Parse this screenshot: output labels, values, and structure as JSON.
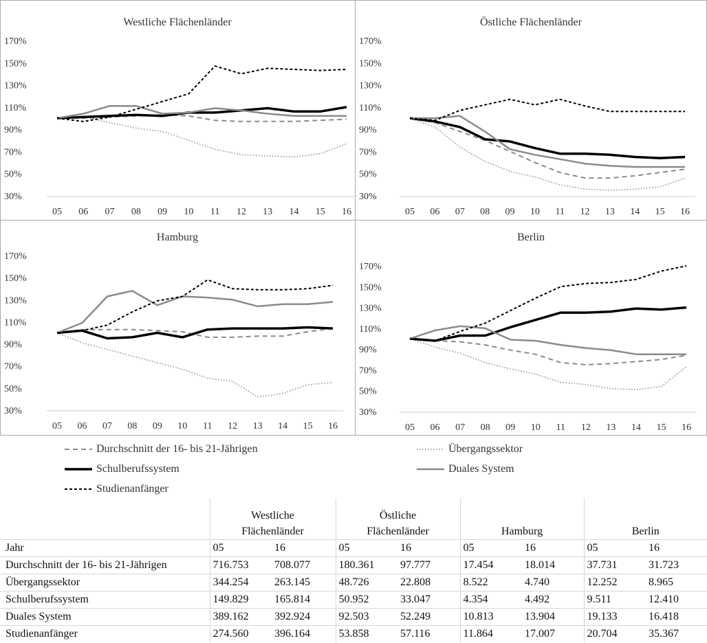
{
  "chart_data": [
    {
      "type": "line",
      "title": "Westliche Flächenländer",
      "categories": [
        "05",
        "06",
        "07",
        "08",
        "09",
        "10",
        "11",
        "12",
        "13",
        "14",
        "15",
        "16"
      ],
      "ylim": [
        30,
        170
      ],
      "yticks": [
        "30%",
        "50%",
        "70%",
        "90%",
        "110%",
        "130%",
        "150%",
        "170%"
      ],
      "series": [
        {
          "key": "durch",
          "values": [
            100,
            100,
            101,
            102,
            103,
            102,
            98,
            97,
            97,
            97,
            98,
            99
          ]
        },
        {
          "key": "ueb",
          "values": [
            100,
            101,
            96,
            91,
            88,
            80,
            72,
            67,
            66,
            65,
            68,
            77
          ]
        },
        {
          "key": "schul",
          "values": [
            100,
            101,
            102,
            103,
            102,
            105,
            105,
            107,
            109,
            106,
            106,
            110
          ]
        },
        {
          "key": "dual",
          "values": [
            100,
            104,
            111,
            111,
            104,
            105,
            109,
            107,
            104,
            102,
            102,
            102
          ]
        },
        {
          "key": "stud",
          "values": [
            100,
            97,
            101,
            108,
            115,
            122,
            147,
            140,
            145,
            144,
            143,
            144
          ]
        }
      ]
    },
    {
      "type": "line",
      "title": "Östliche Flächenländer",
      "categories": [
        "05",
        "06",
        "07",
        "08",
        "09",
        "10",
        "11",
        "12",
        "13",
        "14",
        "15",
        "16"
      ],
      "ylim": [
        30,
        170
      ],
      "yticks": [
        "30%",
        "50%",
        "70%",
        "90%",
        "110%",
        "130%",
        "150%",
        "170%"
      ],
      "series": [
        {
          "key": "durch",
          "values": [
            100,
            96,
            88,
            80,
            70,
            60,
            51,
            46,
            46,
            48,
            51,
            54
          ]
        },
        {
          "key": "ueb",
          "values": [
            100,
            92,
            74,
            61,
            52,
            47,
            40,
            36,
            35,
            36,
            38,
            46
          ]
        },
        {
          "key": "schul",
          "values": [
            100,
            97,
            92,
            81,
            79,
            73,
            68,
            68,
            67,
            65,
            64,
            65
          ]
        },
        {
          "key": "dual",
          "values": [
            100,
            100,
            102,
            88,
            72,
            67,
            63,
            59,
            57,
            56,
            56,
            56
          ]
        },
        {
          "key": "stud",
          "values": [
            100,
            98,
            107,
            112,
            117,
            112,
            117,
            111,
            106,
            106,
            106,
            106
          ]
        }
      ]
    },
    {
      "type": "line",
      "title": "Hamburg",
      "categories": [
        "05",
        "06",
        "07",
        "08",
        "09",
        "10",
        "11",
        "12",
        "13",
        "14",
        "15",
        "16"
      ],
      "ylim": [
        30,
        170
      ],
      "yticks": [
        "30%",
        "50%",
        "70%",
        "90%",
        "110%",
        "130%",
        "150%",
        "170%"
      ],
      "series": [
        {
          "key": "durch",
          "values": [
            100,
            103,
            103,
            103,
            102,
            101,
            96,
            96,
            97,
            97,
            101,
            104
          ]
        },
        {
          "key": "ueb",
          "values": [
            100,
            91,
            85,
            79,
            73,
            67,
            59,
            56,
            42,
            45,
            53,
            55
          ]
        },
        {
          "key": "schul",
          "values": [
            100,
            102,
            95,
            96,
            100,
            96,
            103,
            104,
            104,
            104,
            105,
            104
          ]
        },
        {
          "key": "dual",
          "values": [
            100,
            109,
            133,
            138,
            125,
            133,
            132,
            130,
            124,
            126,
            126,
            128
          ]
        },
        {
          "key": "stud",
          "values": [
            100,
            102,
            107,
            119,
            129,
            133,
            148,
            140,
            139,
            139,
            140,
            143
          ]
        }
      ]
    },
    {
      "type": "line",
      "title": "Berlin",
      "categories": [
        "05",
        "06",
        "07",
        "08",
        "09",
        "10",
        "11",
        "12",
        "13",
        "14",
        "15",
        "16"
      ],
      "ylim": [
        30,
        170
      ],
      "yticks": [
        "30%",
        "50%",
        "70%",
        "90%",
        "110%",
        "130%",
        "150%",
        "170%"
      ],
      "series": [
        {
          "key": "durch",
          "values": [
            100,
            98,
            97,
            94,
            89,
            85,
            77,
            75,
            76,
            78,
            80,
            84
          ]
        },
        {
          "key": "ueb",
          "values": [
            100,
            92,
            86,
            77,
            71,
            66,
            58,
            56,
            52,
            51,
            54,
            73
          ]
        },
        {
          "key": "schul",
          "values": [
            100,
            98,
            103,
            103,
            111,
            118,
            125,
            125,
            126,
            129,
            128,
            130
          ]
        },
        {
          "key": "dual",
          "values": [
            100,
            108,
            112,
            110,
            99,
            98,
            94,
            91,
            89,
            85,
            85,
            85
          ]
        },
        {
          "key": "stud",
          "values": [
            100,
            98,
            107,
            115,
            127,
            139,
            150,
            153,
            154,
            157,
            165,
            170
          ]
        }
      ]
    }
  ],
  "legend": {
    "durch": "Durchschnitt der 16- bis 21-Jährigen",
    "ueb": "Übergangssektor",
    "schul": "Schulberufssystem",
    "dual": "Duales System",
    "stud": "Studienanfänger"
  },
  "table": {
    "header_regions": [
      {
        "line1": "Westliche",
        "line2": "Flächenländer"
      },
      {
        "line1": "Östliche",
        "line2": "Flächenländer"
      },
      {
        "line1": "",
        "line2": "Hamburg"
      },
      {
        "line1": "",
        "line2": "Berlin"
      }
    ],
    "year_row": [
      "Jahr",
      "05",
      "16",
      "05",
      "16",
      "05",
      "16",
      "05",
      "16"
    ],
    "rows": [
      [
        "Durchschnitt der 16- bis 21-Jährigen",
        "716.753",
        "708.077",
        "180.361",
        "97.777",
        "17.454",
        "18.014",
        "37.731",
        "31.723"
      ],
      [
        "Übergangssektor",
        "344.254",
        "263.145",
        "48.726",
        "22.808",
        "8.522",
        "4.740",
        "12.252",
        "8.965"
      ],
      [
        "Schulberufssystem",
        "149.829",
        "165.814",
        "50.952",
        "33.047",
        "4.354",
        "4.492",
        "9.511",
        "12.410"
      ],
      [
        "Duales System",
        "389.162",
        "392.924",
        "92.503",
        "52.249",
        "10.813",
        "13.904",
        "19.133",
        "16.418"
      ],
      [
        "Studienanfänger",
        "274.560",
        "396.164",
        "53.858",
        "57.116",
        "11.864",
        "17.007",
        "20.704",
        "35.367"
      ]
    ]
  }
}
